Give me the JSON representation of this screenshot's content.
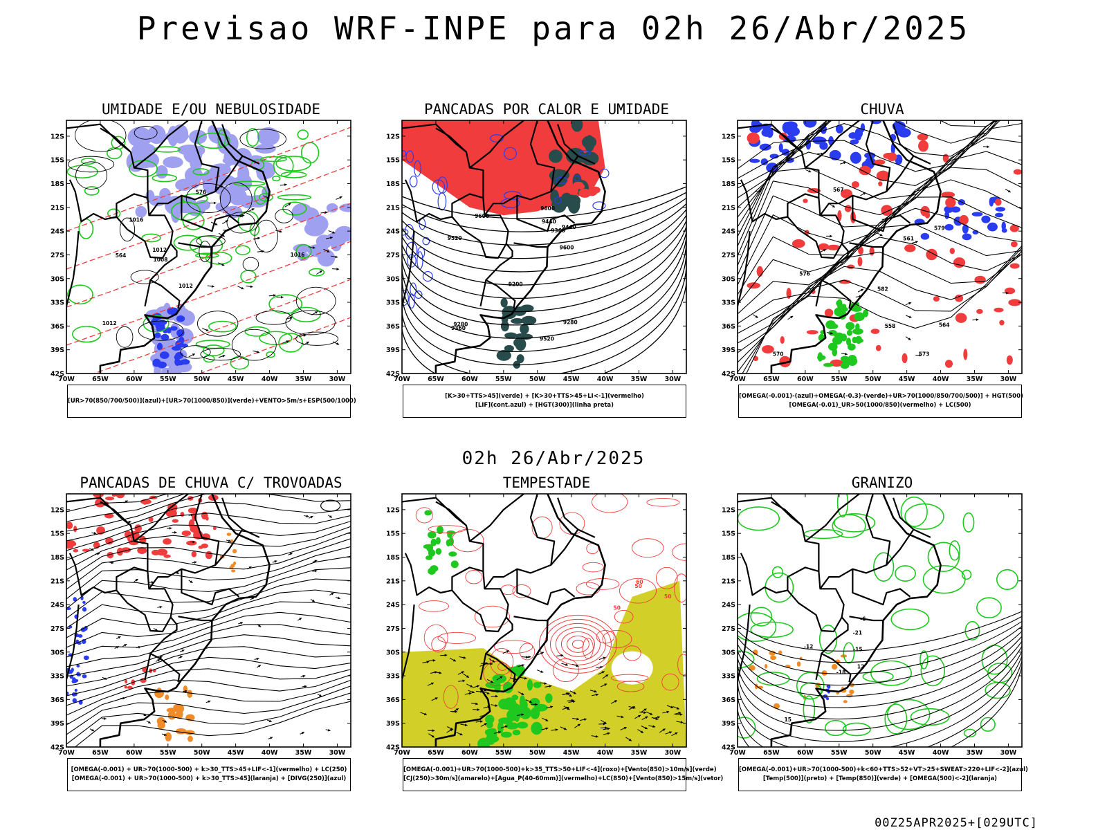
{
  "title": "Previsao WRF-INPE  para 02h 26/Abr/2025",
  "mid_time": "02h 26/Abr/2025",
  "footer": "00Z25APR2025+[029UTC]",
  "axes": {
    "lat_labels": [
      "12S",
      "15S",
      "18S",
      "21S",
      "24S",
      "27S",
      "30S",
      "33S",
      "36S",
      "39S",
      "42S"
    ],
    "lon_labels": [
      "70W",
      "65W",
      "60W",
      "55W",
      "50W",
      "45W",
      "40W",
      "35W",
      "30W"
    ]
  },
  "panels": [
    {
      "id": "umidade",
      "title": "UMIDADE E/OU NEBULOSIDADE",
      "legend": [
        "[UR>70(850/700/500)](azul)+[UR>70(1000/850)](verde)+VENTO>5m/s+ESP(500/1000)"
      ],
      "contour_labels": [
        "1012",
        "1008",
        "1016",
        "576",
        "564",
        "1012",
        "1016",
        "1012"
      ]
    },
    {
      "id": "pancadas-calor",
      "title": "PANCADAS POR CALOR E UMIDADE",
      "legend": [
        "[K>30+TTS>45](verde) + [K>30+TTS>45+LI<-1](vermelho)",
        "[LIF](cont.azul) + [HGT(300)](linha preta)"
      ],
      "contour_labels": [
        "9600",
        "9600",
        "9520",
        "9520",
        "9440",
        "9360",
        "9280",
        "9200",
        "9440",
        "9360",
        "9280",
        "9600"
      ]
    },
    {
      "id": "chuva",
      "title": "CHUVA",
      "legend": [
        "[OMEGA(-0.001)-(azul)+OMEGA(-0.3)-(verde)+UR>70(1000/850/700/500)] + HGT(500)",
        "[OMEGA(-0.01)_UR>50(1000/850)(vermelho) + LC(500)"
      ],
      "contour_labels": [
        "582",
        "579",
        "576",
        "573",
        "570",
        "567",
        "564",
        "561",
        "558"
      ]
    },
    {
      "id": "pancadas-trovoadas",
      "title": "PANCADAS DE CHUVA C/ TROVOADAS",
      "legend": [
        "[OMEGA(-0.001) + UR>70(1000-500) + k>30_TTS>45+LIF<-1](vermelho) + LC(250)",
        "[OMEGA(-0.001) + UR>70(1000-500) + k>30_TTS>45](laranja) + [DIVG(250)](azul)"
      ],
      "contour_labels": []
    },
    {
      "id": "tempestade",
      "title": "TEMPESTADE",
      "legend": [
        "[OMEGA(-0.001)+UR>70(1000-500)+k>35_TTS>50+LIF<-4](roxo)+[Vento(850)>10m/s](verde)",
        "[CJ(250)>30m/s](amarelo)+[Agua_P(40-60mm)](vermelho)+LC(850)+[Vento(850)>15m/s](vetor)"
      ],
      "contour_labels": [
        "50",
        "50",
        "50",
        "60"
      ]
    },
    {
      "id": "granizo",
      "title": "GRANIZO",
      "legend": [
        "[OMEGA(-0.001)+UR>70(1000-500)+k<60+TTS>52+VT>25+SWEAT>220+LIF<-2](azul)",
        "[Temp(500)](preto) + [Temp(850)](verde) + [OMEGA(500)<-2](laranja)"
      ],
      "contour_labels": [
        "-6",
        "-12",
        "-15",
        "-21",
        "-18",
        "12",
        "15"
      ]
    }
  ],
  "colors": {
    "red": "#f03c3c",
    "blue": "#2a3cf0",
    "green": "#1ec81e",
    "lavender": "#a0a0f0",
    "darkteal": "#284b4b",
    "yellow": "#d2cf28",
    "orange": "#f08c28"
  }
}
